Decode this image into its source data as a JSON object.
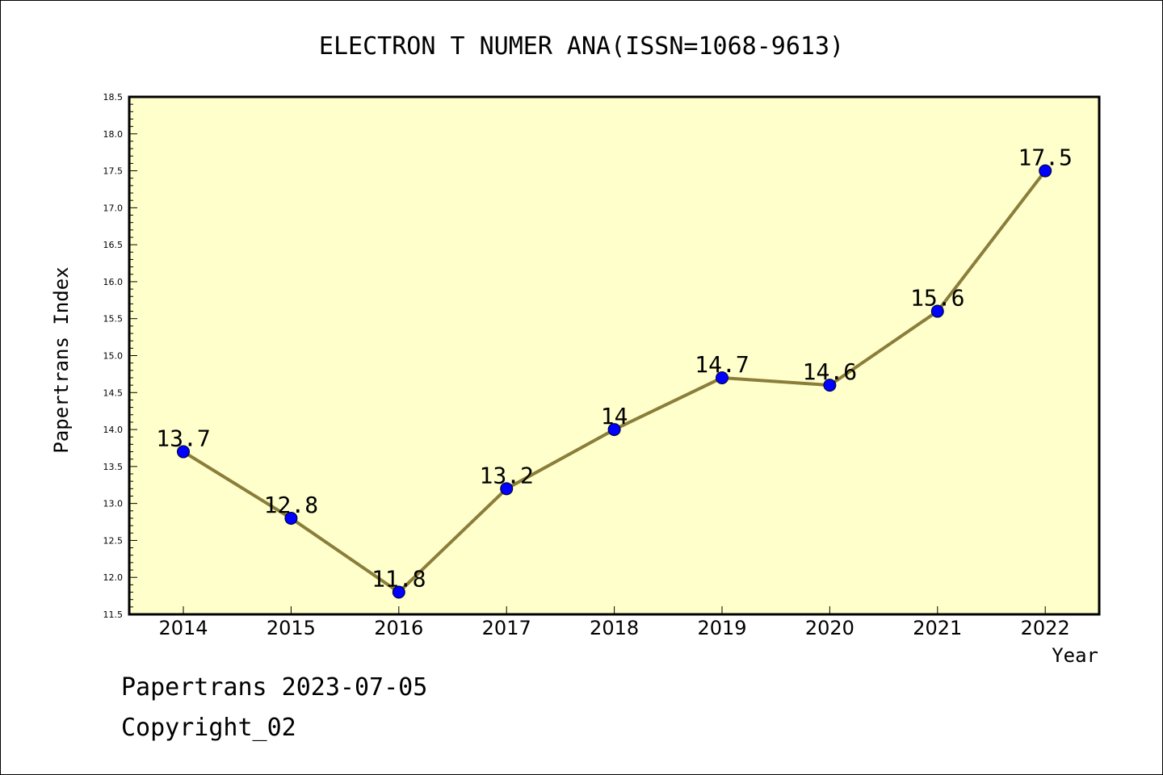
{
  "footer": {
    "line1": "Papertrans 2023-07-05",
    "line2": "Copyright_02"
  },
  "colors": {
    "plot_background": "#ffffcc",
    "line": "#8b7d3a",
    "marker": "#0000ff",
    "axis": "#000000"
  },
  "chart_data": {
    "type": "line",
    "title": "ELECTRON T NUMER ANA(ISSN=1068-9613)",
    "xlabel": "Year",
    "ylabel": "Papertrans Index",
    "categories": [
      "2014",
      "2015",
      "2016",
      "2017",
      "2018",
      "2019",
      "2020",
      "2021",
      "2022"
    ],
    "series": [
      {
        "values": [
          13.7,
          12.8,
          11.8,
          13.2,
          14.0,
          14.7,
          14.6,
          15.6,
          17.5
        ],
        "data_labels": [
          "13.7",
          "12.8",
          "11.8",
          "13.2",
          "14",
          "14.7",
          "14.6",
          "15.6",
          "17.5"
        ]
      }
    ],
    "ylim": [
      11.5,
      18.5
    ],
    "yticks": [
      "11.5",
      "12.0",
      "12.5",
      "13.0",
      "13.5",
      "14.0",
      "14.5",
      "15.0",
      "15.5",
      "16.0",
      "16.5",
      "17.0",
      "17.5",
      "18.0",
      "18.5"
    ],
    "grid": false,
    "legend": "none"
  }
}
